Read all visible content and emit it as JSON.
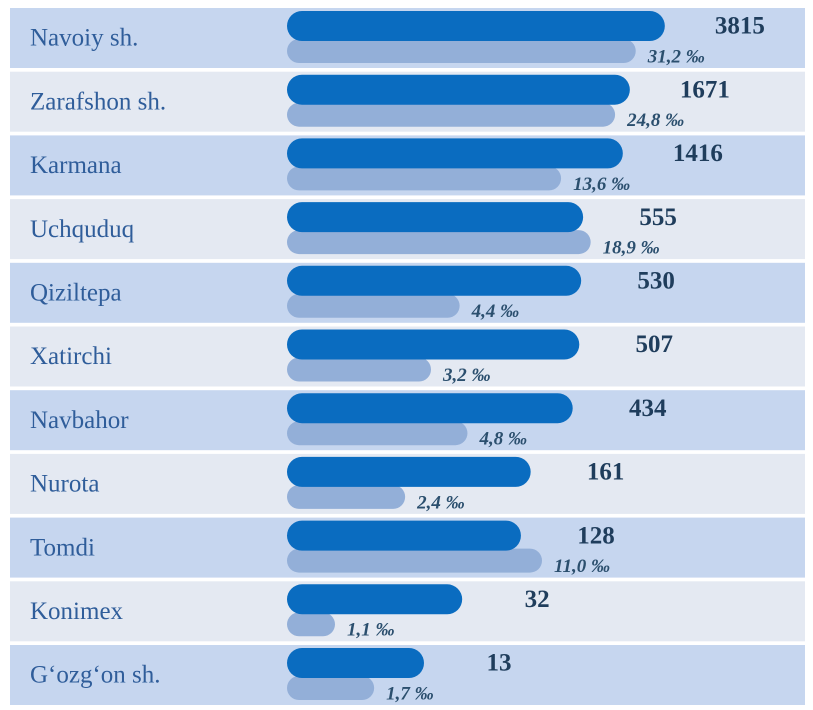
{
  "chart_data": {
    "type": "bar",
    "orientation": "horizontal",
    "categories": [
      "Navoiy sh.",
      "Zarafshon sh.",
      "Karmana",
      "Uchquduq",
      "Qiziltepa",
      "Xatirchi",
      "Navbahor",
      "Nurota",
      "Tomdi",
      "Konimex",
      "G‘ozg‘on sh."
    ],
    "series": [
      {
        "color": "#0a6cc0",
        "values": [
          3815,
          1671,
          1416,
          555,
          530,
          507,
          434,
          161,
          128,
          32,
          13
        ]
      },
      {
        "color": "#93afd8",
        "values": [
          31.2,
          24.8,
          13.6,
          18.9,
          4.4,
          3.2,
          4.8,
          2.4,
          11.0,
          1.1,
          1.7
        ],
        "value_labels": [
          "31,2 ‰",
          "24,8 ‰",
          "13,6 ‰",
          "18,9 ‰",
          "4,4 ‰",
          "3,2 ‰",
          "4,8 ‰",
          "2,4 ‰",
          "11,0 ‰",
          "1,1 ‰",
          "1,7 ‰"
        ]
      }
    ],
    "row_colors": [
      "#c6d6ef",
      "#e4e9f2"
    ]
  }
}
